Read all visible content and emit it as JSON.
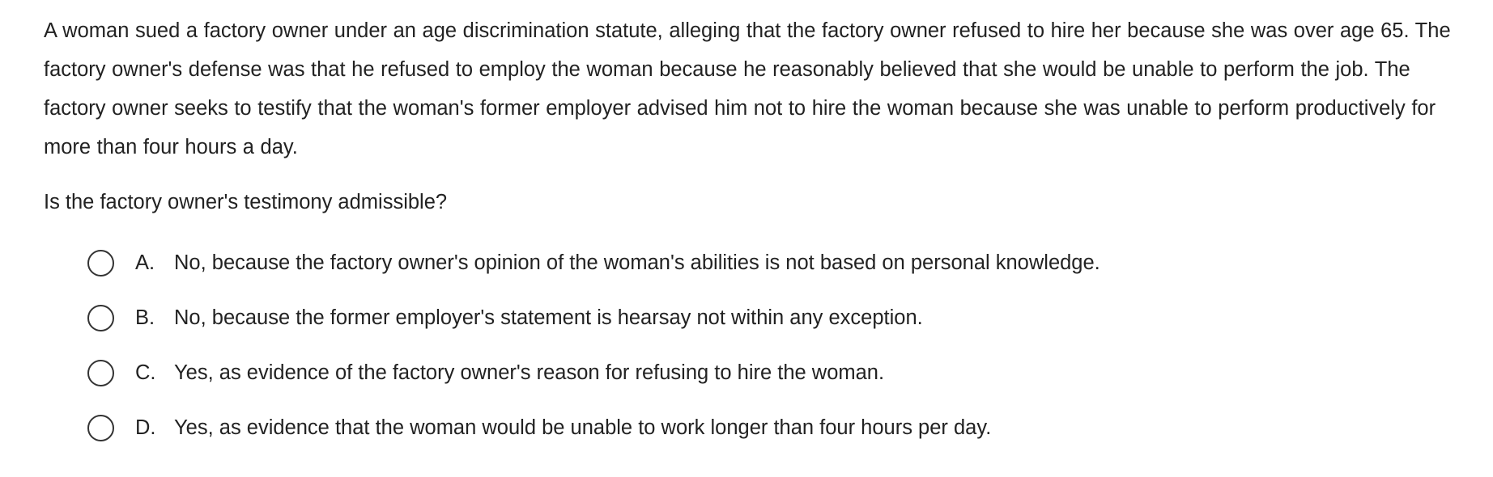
{
  "question": {
    "stem": "A woman sued a factory owner under an age discrimination statute, alleging that the factory owner refused to hire her because she was over age 65.  The factory owner's defense was that he refused to employ the woman because he reasonably believed that she would be unable to perform the job.  The factory owner seeks to testify that the woman's former employer advised him not to hire the woman because she was unable to perform productively for more than four hours a day.",
    "prompt": "Is the factory owner's testimony admissible?",
    "options": [
      {
        "letter": "A.",
        "text": "No, because the factory owner's opinion of the woman's abilities is not based on personal knowledge."
      },
      {
        "letter": "B.",
        "text": "No, because the former employer's statement is hearsay not within any exception."
      },
      {
        "letter": "C.",
        "text": "Yes, as evidence of the factory owner's reason for refusing to hire the woman."
      },
      {
        "letter": "D.",
        "text": "Yes, as evidence that the woman would be unable to work longer than four hours per day."
      }
    ]
  }
}
